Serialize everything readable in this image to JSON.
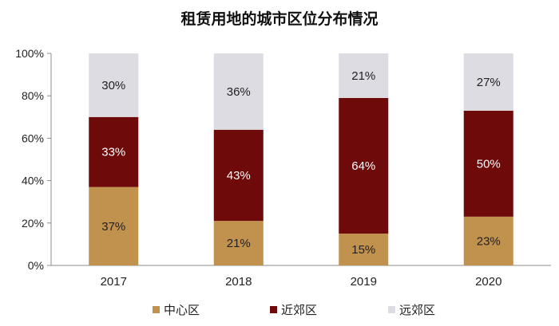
{
  "chart_data": {
    "type": "bar",
    "stacked": true,
    "title": "租赁用地的城市区位分布情况",
    "categories": [
      "2017",
      "2018",
      "2019",
      "2020"
    ],
    "series": [
      {
        "name": "中心区",
        "color": "#C1914E",
        "label_color": "#222222",
        "values": [
          37,
          21,
          15,
          23
        ],
        "labels": [
          "37%",
          "21%",
          "15%",
          "23%"
        ]
      },
      {
        "name": "近郊区",
        "color": "#6E0A0A",
        "label_color": "#ffffff",
        "values": [
          33,
          43,
          64,
          50
        ],
        "labels": [
          "33%",
          "43%",
          "64%",
          "50%"
        ]
      },
      {
        "name": "远郊区",
        "color": "#DCDCE2",
        "label_color": "#222222",
        "values": [
          30,
          36,
          21,
          27
        ],
        "labels": [
          "30%",
          "36%",
          "21%",
          "27%"
        ]
      }
    ],
    "ylim": [
      0,
      100
    ],
    "yticks": [
      "0%",
      "20%",
      "40%",
      "60%",
      "80%",
      "100%"
    ],
    "xlabel": "",
    "ylabel": "",
    "grid": false,
    "legend_position": "bottom"
  }
}
